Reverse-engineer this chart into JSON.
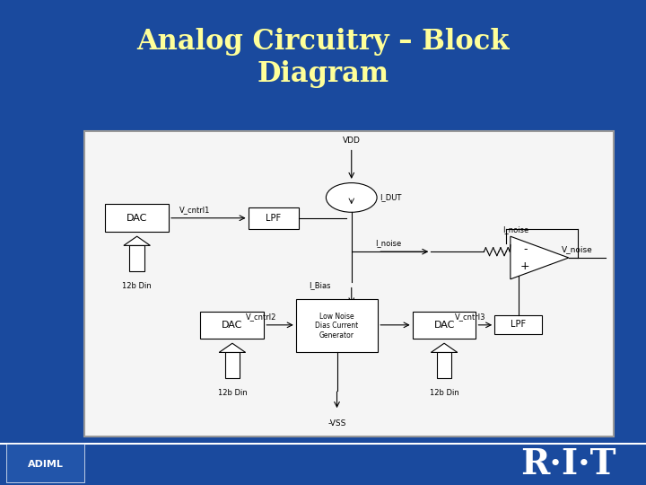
{
  "title": "Analog Circuitry – Block\nDiagram",
  "title_color": "#FFFF99",
  "bg_color": "#1a4a9e",
  "diagram_bg": "#f5f5f5",
  "rit_text": "R·I·T",
  "adiml_text": "ADIML"
}
